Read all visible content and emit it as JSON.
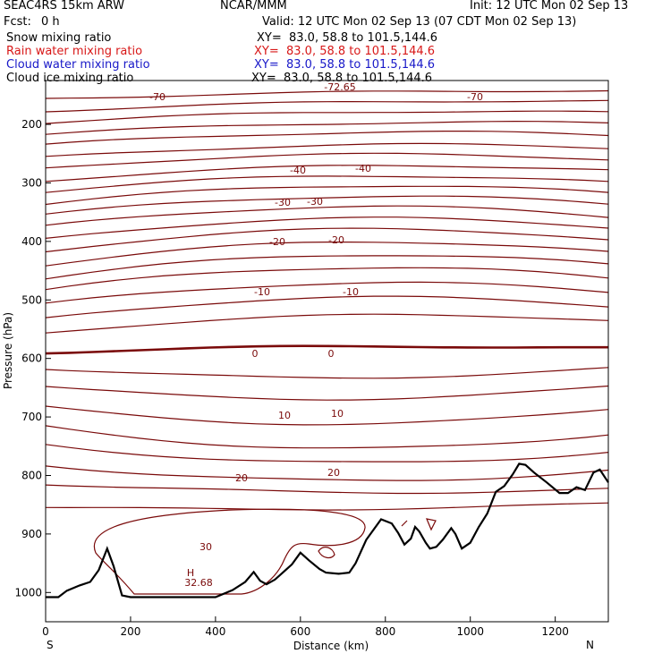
{
  "header": {
    "model": "SEAC4RS 15km ARW",
    "org": "NCAR/MMM",
    "init": "Init: 12 UTC Mon 02 Sep 13",
    "fcst_label": "Fcst:",
    "fcst_value": "0 h",
    "valid": "Valid: 12 UTC Mon 02 Sep 13 (07 CDT Mon 02 Sep 13)"
  },
  "fields": [
    {
      "name": "Snow mixing ratio",
      "xy": "XY=  83.0, 58.8 to 101.5,144.6",
      "color": "#000000"
    },
    {
      "name": "Rain water mixing ratio",
      "xy": "XY=  83.0, 58.8 to 101.5,144.6",
      "color": "#d81818"
    },
    {
      "name": "Cloud water mixing ratio",
      "xy": "XY=  83.0, 58.8 to 101.5,144.6",
      "color": "#1818c8"
    },
    {
      "name": "Cloud ice mixing ratio",
      "xy": "XY=  83.0, 58.8 to 101.5,144.6",
      "color": "#000000"
    }
  ],
  "chart_data": {
    "type": "line",
    "xlabel": "Distance (km)",
    "ylabel": "Pressure (hPa)",
    "x_ticks": [
      "0",
      "200",
      "400",
      "600",
      "800",
      "1000",
      "1200"
    ],
    "y_ticks": [
      "200",
      "300",
      "400",
      "500",
      "600",
      "700",
      "800",
      "900",
      "1000"
    ],
    "xlim": [
      0,
      1325
    ],
    "ylim": [
      1050,
      125
    ],
    "left_end_label": "S",
    "right_end_label": "N",
    "contour_color": "#7a0a0a",
    "terrain_color": "#000000",
    "contour_labels": [
      "-72.65",
      "-70",
      "-70",
      "-40",
      "-40",
      "-30",
      "-30",
      "-20",
      "-20",
      "-10",
      "-10",
      "0",
      "0",
      "10",
      "10",
      "20",
      "20",
      "30"
    ],
    "max_label": "H",
    "max_value": "32.68",
    "terrain_pressure": [
      [
        0,
        1008
      ],
      [
        30,
        1008
      ],
      [
        50,
        997
      ],
      [
        80,
        988
      ],
      [
        105,
        982
      ],
      [
        125,
        962
      ],
      [
        145,
        925
      ],
      [
        160,
        955
      ],
      [
        180,
        1005
      ],
      [
        200,
        1008
      ],
      [
        320,
        1008
      ],
      [
        400,
        1008
      ],
      [
        440,
        996
      ],
      [
        470,
        982
      ],
      [
        490,
        965
      ],
      [
        505,
        980
      ],
      [
        520,
        986
      ],
      [
        540,
        978
      ],
      [
        560,
        965
      ],
      [
        580,
        952
      ],
      [
        600,
        932
      ],
      [
        620,
        945
      ],
      [
        645,
        960
      ],
      [
        660,
        966
      ],
      [
        690,
        968
      ],
      [
        715,
        966
      ],
      [
        730,
        950
      ],
      [
        755,
        910
      ],
      [
        790,
        875
      ],
      [
        815,
        882
      ],
      [
        830,
        898
      ],
      [
        845,
        918
      ],
      [
        860,
        908
      ],
      [
        870,
        888
      ],
      [
        880,
        896
      ],
      [
        895,
        915
      ],
      [
        905,
        925
      ],
      [
        920,
        922
      ],
      [
        935,
        910
      ],
      [
        955,
        890
      ],
      [
        965,
        900
      ],
      [
        980,
        925
      ],
      [
        1000,
        915
      ],
      [
        1020,
        888
      ],
      [
        1040,
        865
      ],
      [
        1060,
        828
      ],
      [
        1080,
        818
      ],
      [
        1100,
        798
      ],
      [
        1115,
        780
      ],
      [
        1130,
        782
      ],
      [
        1150,
        795
      ],
      [
        1180,
        812
      ],
      [
        1210,
        830
      ],
      [
        1230,
        830
      ],
      [
        1250,
        820
      ],
      [
        1270,
        825
      ],
      [
        1290,
        795
      ],
      [
        1305,
        790
      ],
      [
        1325,
        812
      ]
    ]
  }
}
